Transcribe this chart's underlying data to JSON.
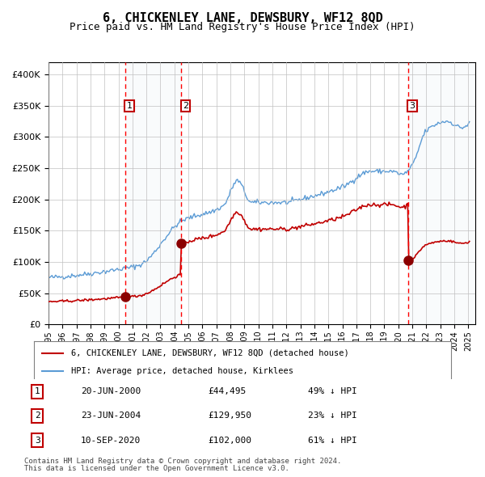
{
  "title": "6, CHICKENLEY LANE, DEWSBURY, WF12 8QD",
  "subtitle": "Price paid vs. HM Land Registry's House Price Index (HPI)",
  "legend_line1": "6, CHICKENLEY LANE, DEWSBURY, WF12 8QD (detached house)",
  "legend_line2": "HPI: Average price, detached house, Kirklees",
  "footer1": "Contains HM Land Registry data © Crown copyright and database right 2024.",
  "footer2": "This data is licensed under the Open Government Licence v3.0.",
  "transactions": [
    {
      "num": 1,
      "date": "20-JUN-2000",
      "price": 44495,
      "pct": "49% ↓ HPI",
      "year": 2000.47
    },
    {
      "num": 2,
      "date": "23-JUN-2004",
      "price": 129950,
      "pct": "23% ↓ HPI",
      "year": 2004.48
    },
    {
      "num": 3,
      "date": "10-SEP-2020",
      "price": 102000,
      "pct": "61% ↓ HPI",
      "year": 2020.69
    }
  ],
  "hpi_color": "#5b9bd5",
  "price_color": "#c00000",
  "marker_color": "#8b0000",
  "dashed_color": "#ff0000",
  "shade_color": "#dce6f1",
  "grid_color": "#c0c0c0",
  "background_color": "#ffffff",
  "ylim": [
    0,
    420000
  ],
  "xlim_start": 1995,
  "xlim_end": 2025.5
}
